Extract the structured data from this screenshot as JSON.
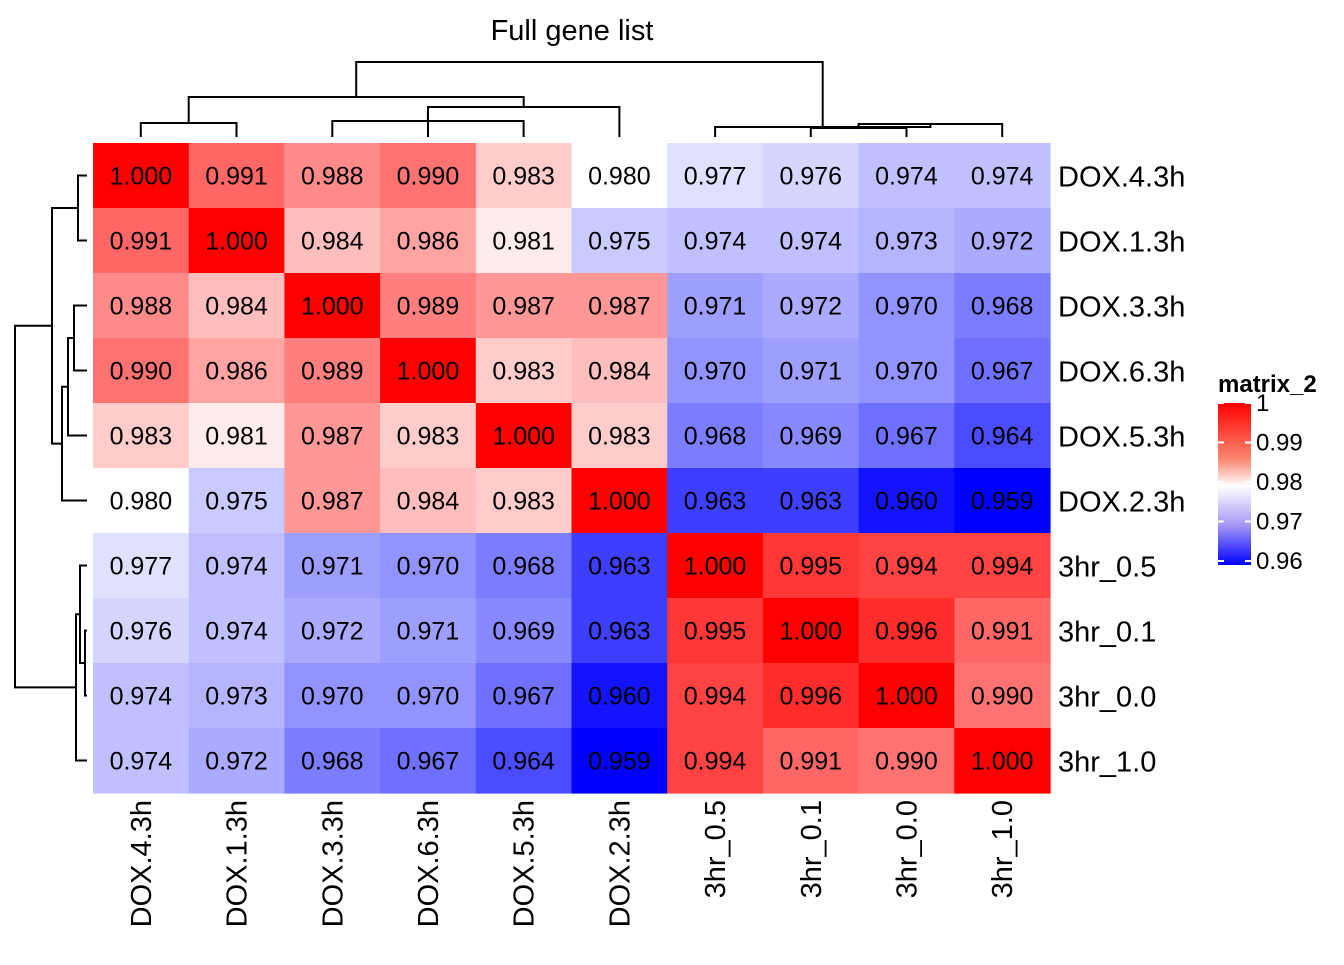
{
  "chart_data": {
    "type": "heatmap",
    "title": "Full gene list",
    "rows": [
      "DOX.4.3h",
      "DOX.1.3h",
      "DOX.3.3h",
      "DOX.6.3h",
      "DOX.5.3h",
      "DOX.2.3h",
      "3hr_0.5",
      "3hr_0.1",
      "3hr_0.0",
      "3hr_1.0"
    ],
    "columns": [
      "DOX.4.3h",
      "DOX.1.3h",
      "DOX.3.3h",
      "DOX.6.3h",
      "DOX.5.3h",
      "DOX.2.3h",
      "3hr_0.5",
      "3hr_0.1",
      "3hr_0.0",
      "3hr_1.0"
    ],
    "values": [
      [
        1.0,
        0.991,
        0.988,
        0.99,
        0.983,
        0.98,
        0.977,
        0.976,
        0.974,
        0.974
      ],
      [
        0.991,
        1.0,
        0.984,
        0.986,
        0.981,
        0.975,
        0.974,
        0.974,
        0.973,
        0.972
      ],
      [
        0.988,
        0.984,
        1.0,
        0.989,
        0.987,
        0.987,
        0.971,
        0.972,
        0.97,
        0.968
      ],
      [
        0.99,
        0.986,
        0.989,
        1.0,
        0.983,
        0.984,
        0.97,
        0.971,
        0.97,
        0.967
      ],
      [
        0.983,
        0.981,
        0.987,
        0.983,
        1.0,
        0.983,
        0.968,
        0.969,
        0.967,
        0.964
      ],
      [
        0.98,
        0.975,
        0.987,
        0.984,
        0.983,
        1.0,
        0.963,
        0.963,
        0.96,
        0.959
      ],
      [
        0.977,
        0.974,
        0.971,
        0.97,
        0.968,
        0.963,
        1.0,
        0.995,
        0.994,
        0.994
      ],
      [
        0.976,
        0.974,
        0.972,
        0.971,
        0.969,
        0.963,
        0.995,
        1.0,
        0.996,
        0.991
      ],
      [
        0.974,
        0.973,
        0.97,
        0.97,
        0.967,
        0.96,
        0.994,
        0.996,
        1.0,
        0.99
      ],
      [
        0.974,
        0.972,
        0.968,
        0.967,
        0.964,
        0.959,
        0.994,
        0.991,
        0.99,
        1.0
      ]
    ],
    "color_scale": {
      "min": 0.959,
      "mid": 0.98,
      "max": 1.0,
      "low_color": "#0000ff",
      "mid_color": "#ffffff",
      "high_color": "#ff0000"
    },
    "legend": {
      "title": "matrix_2",
      "placement": "right",
      "ticks": [
        1,
        0.99,
        0.98,
        0.97,
        0.96
      ],
      "tick_labels": [
        "1",
        "0.99",
        "0.98",
        "0.97",
        "0.96"
      ]
    },
    "dendrogram": "hierarchical clustering shown on top (columns) and left (rows)"
  }
}
